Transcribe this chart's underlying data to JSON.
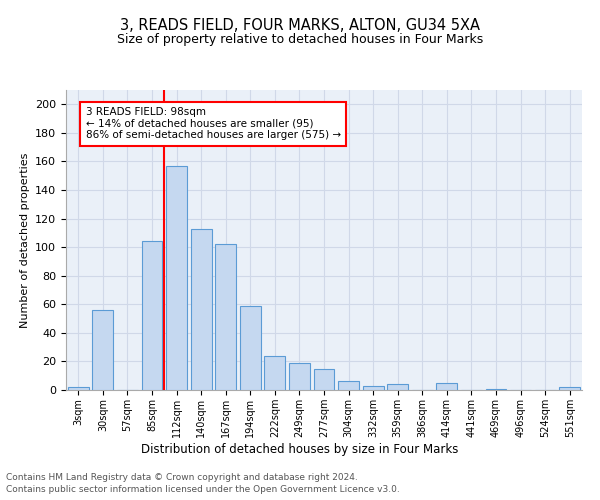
{
  "title": "3, READS FIELD, FOUR MARKS, ALTON, GU34 5XA",
  "subtitle": "Size of property relative to detached houses in Four Marks",
  "xlabel": "Distribution of detached houses by size in Four Marks",
  "ylabel": "Number of detached properties",
  "categories": [
    "3sqm",
    "30sqm",
    "57sqm",
    "85sqm",
    "112sqm",
    "140sqm",
    "167sqm",
    "194sqm",
    "222sqm",
    "249sqm",
    "277sqm",
    "304sqm",
    "332sqm",
    "359sqm",
    "386sqm",
    "414sqm",
    "441sqm",
    "469sqm",
    "496sqm",
    "524sqm",
    "551sqm"
  ],
  "values": [
    2,
    56,
    0,
    104,
    157,
    113,
    102,
    59,
    24,
    19,
    15,
    6,
    3,
    4,
    0,
    5,
    0,
    1,
    0,
    0,
    2
  ],
  "bar_color": "#c5d8f0",
  "bar_edge_color": "#5b9bd5",
  "annotation_text": "3 READS FIELD: 98sqm\n← 14% of detached houses are smaller (95)\n86% of semi-detached houses are larger (575) →",
  "annotation_box_color": "white",
  "annotation_box_edge": "red",
  "vline_color": "red",
  "vline_pos": 3.5,
  "ylim": [
    0,
    210
  ],
  "yticks": [
    0,
    20,
    40,
    60,
    80,
    100,
    120,
    140,
    160,
    180,
    200
  ],
  "grid_color": "#d0d8e8",
  "background_color": "#eaf0f8",
  "footer1": "Contains HM Land Registry data © Crown copyright and database right 2024.",
  "footer2": "Contains public sector information licensed under the Open Government Licence v3.0."
}
